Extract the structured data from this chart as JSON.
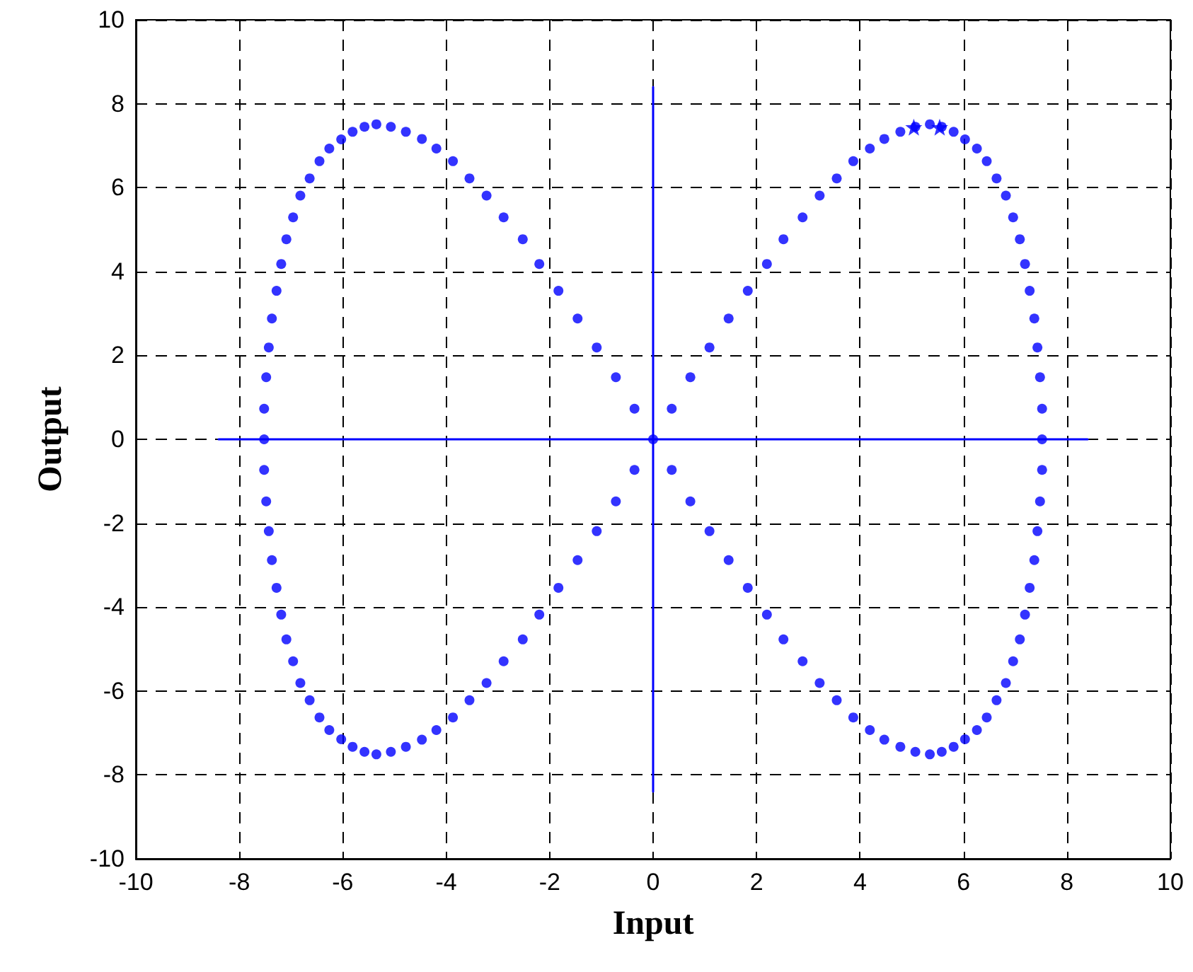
{
  "chart_data": {
    "type": "scatter",
    "xlabel": "Input",
    "ylabel": "Output",
    "xlim": [
      -10,
      10
    ],
    "xticks": [
      -10,
      -8,
      -6,
      -4,
      -2,
      0,
      2,
      4,
      6,
      8,
      10
    ],
    "ylim": [
      -10,
      10
    ],
    "yticks": [
      -10,
      -8,
      -6,
      -4,
      -2,
      0,
      2,
      4,
      6,
      8,
      10
    ],
    "grid": true,
    "series": [
      {
        "marker": "circle",
        "color": "#0000ff",
        "x": [
          0,
          0.36,
          0.72,
          1.09,
          1.46,
          1.83,
          2.2,
          2.52,
          2.89,
          3.22,
          3.55,
          3.87,
          4.19,
          4.47,
          4.78,
          5.07,
          5.35,
          5.58,
          5.81,
          6.03,
          6.26,
          6.45,
          6.64,
          6.82,
          6.96,
          7.09,
          7.19,
          7.28,
          7.37,
          7.43,
          7.48,
          7.52,
          7.52,
          7.52,
          7.48,
          7.43,
          7.37,
          7.28,
          7.19,
          7.09,
          6.96,
          6.82,
          6.64,
          6.45,
          6.26,
          6.03,
          5.81,
          5.58,
          5.35,
          5.07,
          4.78,
          4.47,
          4.19,
          3.87,
          3.55,
          3.22,
          2.89,
          2.52,
          2.2,
          1.83,
          1.46,
          1.09,
          0.72,
          0.36,
          -0.36,
          -0.72,
          -1.09,
          -1.46,
          -1.83,
          -2.2,
          -2.52,
          -2.89,
          -3.22,
          -3.55,
          -3.87,
          -4.19,
          -4.47,
          -4.78,
          -5.07,
          -5.35,
          -5.58,
          -5.81,
          -6.03,
          -6.26,
          -6.45,
          -6.64,
          -6.82,
          -6.96,
          -7.09,
          -7.19,
          -7.28,
          -7.37,
          -7.43,
          -7.48,
          -7.52,
          -7.52,
          -7.52,
          -7.48,
          -7.43,
          -7.37,
          -7.28,
          -7.19,
          -7.09,
          -6.96,
          -6.82,
          -6.64,
          -6.45,
          -6.26,
          -6.03,
          -5.81,
          -5.58,
          -5.35,
          -5.07,
          -4.78,
          -4.47,
          -4.19,
          -3.87,
          -3.55,
          -3.22,
          -2.89,
          -2.52,
          -2.2,
          -1.83,
          -1.46,
          -1.09,
          -0.72,
          -0.36
        ],
        "values": [
          0,
          0.73,
          1.48,
          2.19,
          2.88,
          3.54,
          4.18,
          4.77,
          5.29,
          5.81,
          6.22,
          6.63,
          6.93,
          7.16,
          7.33,
          7.45,
          7.51,
          7.45,
          7.33,
          7.15,
          6.93,
          6.63,
          6.22,
          5.81,
          5.29,
          4.77,
          4.18,
          3.54,
          2.88,
          2.19,
          1.48,
          0.73,
          0,
          -0.73,
          -1.48,
          -2.19,
          -2.88,
          -3.54,
          -4.18,
          -4.77,
          -5.29,
          -5.81,
          -6.22,
          -6.63,
          -6.93,
          -7.15,
          -7.33,
          -7.45,
          -7.51,
          -7.45,
          -7.33,
          -7.16,
          -6.93,
          -6.63,
          -6.22,
          -5.81,
          -5.29,
          -4.77,
          -4.18,
          -3.54,
          -2.88,
          -2.19,
          -1.48,
          -0.73,
          -0.73,
          -1.48,
          -2.19,
          -2.88,
          -3.54,
          -4.18,
          -4.77,
          -5.29,
          -5.81,
          -6.22,
          -6.63,
          -6.93,
          -7.16,
          -7.33,
          -7.45,
          -7.51,
          -7.45,
          -7.33,
          -7.15,
          -6.93,
          -6.63,
          -6.22,
          -5.81,
          -5.29,
          -4.77,
          -4.18,
          -3.54,
          -2.88,
          -2.19,
          -1.48,
          -0.73,
          0,
          0.73,
          1.48,
          2.19,
          2.88,
          3.54,
          4.18,
          4.77,
          5.29,
          5.81,
          6.22,
          6.63,
          6.93,
          7.15,
          7.33,
          7.45,
          7.51,
          7.45,
          7.33,
          7.16,
          6.93,
          6.63,
          6.22,
          5.81,
          5.29,
          4.77,
          4.18,
          3.54,
          2.88,
          2.19,
          1.48,
          0.73
        ]
      },
      {
        "type": "scatter",
        "marker": "star",
        "color": "#0000ff",
        "x": [
          5.04,
          5.54
        ],
        "values": [
          7.44,
          7.44
        ]
      },
      {
        "type": "line",
        "marker": "none",
        "color": "#0000ff",
        "x": [
          -8.4,
          8.4
        ],
        "values": [
          0,
          0
        ]
      },
      {
        "type": "line",
        "marker": "none",
        "color": "#0000ff",
        "x": [
          0,
          0
        ],
        "values": [
          -8.4,
          8.4
        ]
      }
    ]
  }
}
